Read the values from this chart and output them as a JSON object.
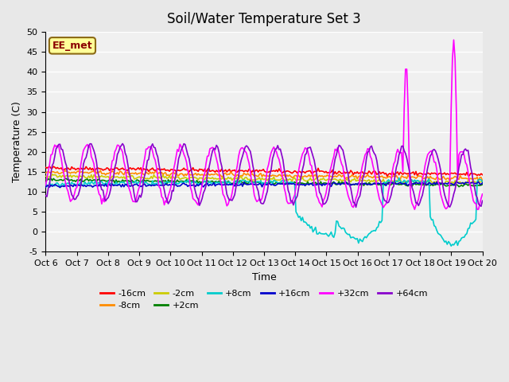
{
  "title": "Soil/Water Temperature Set 3",
  "xlabel": "Time",
  "ylabel": "Temperature (C)",
  "ylim": [
    -5,
    50
  ],
  "xlim": [
    0,
    14
  ],
  "yticks": [
    -5,
    0,
    5,
    10,
    15,
    20,
    25,
    30,
    35,
    40,
    45,
    50
  ],
  "xtick_labels": [
    "Oct 6",
    "Oct 7",
    "Oct 8",
    "Oct 9",
    "Oct 10",
    "Oct 11",
    "Oct 12",
    "Oct 13",
    "Oct 14",
    "Oct 15",
    "Oct 16",
    "Oct 17",
    "Oct 18",
    "Oct 19",
    "Oct 20"
  ],
  "annotation_text": "EE_met",
  "annotation_color": "#8B0000",
  "annotation_bg": "#FFFF99",
  "annotation_border": "#8B6914",
  "bg_color": "#E8E8E8",
  "plot_bg": "#F0F0F0",
  "legend_entries": [
    "-16cm",
    "-8cm",
    "-2cm",
    "+2cm",
    "+8cm",
    "+16cm",
    "+32cm",
    "+64cm"
  ],
  "line_colors": {
    "-16cm": "#FF0000",
    "-8cm": "#FF8C00",
    "-2cm": "#CCCC00",
    "+2cm": "#008000",
    "+8cm": "#00CCCC",
    "+16cm": "#0000CC",
    "+32cm": "#FF00FF",
    "+64cm": "#8800CC"
  }
}
